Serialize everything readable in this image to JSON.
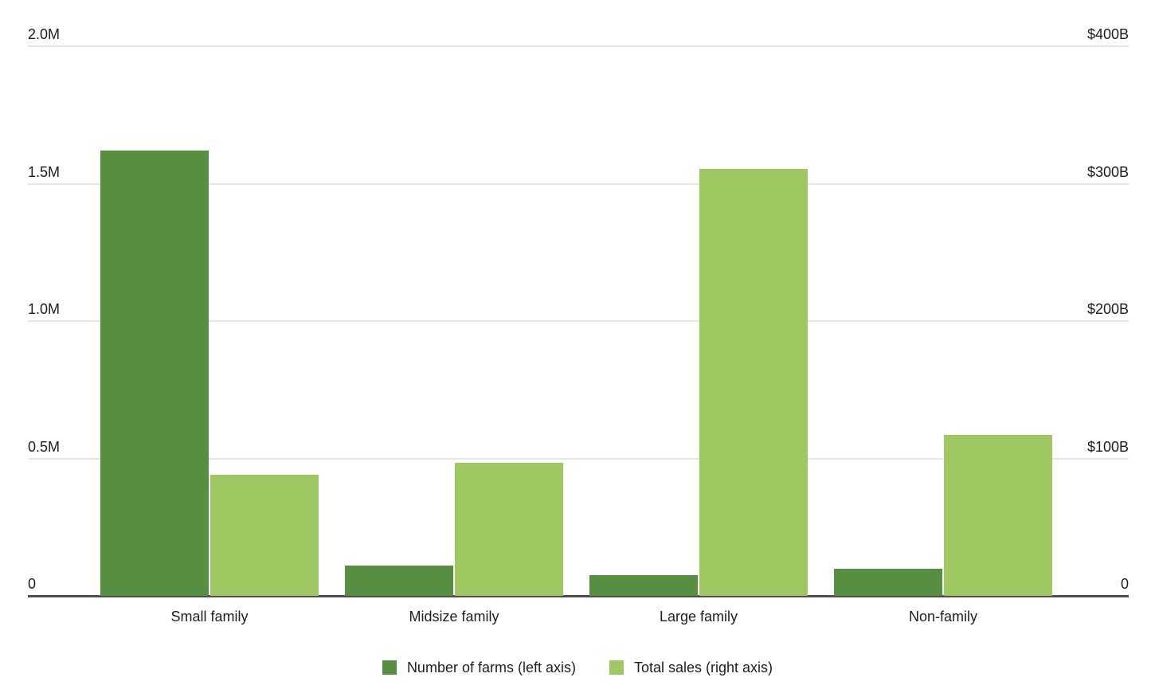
{
  "chart_data": {
    "type": "bar",
    "title": "",
    "categories": [
      "Small family",
      "Midsize family",
      "Large family",
      "Non-family"
    ],
    "series": [
      {
        "name": "Number of farms (left axis)",
        "axis": "left",
        "color": "#568f41",
        "values": [
          1.62,
          0.11,
          0.075,
          0.099
        ]
      },
      {
        "name": "Total sales (right axis)",
        "axis": "right",
        "color": "#a0c862",
        "values": [
          88,
          97,
          311,
          117
        ]
      }
    ],
    "left_axis": {
      "min": 0,
      "max": 2.0,
      "ticks": [
        "0",
        "0.5M",
        "1.0M",
        "1.5M",
        "2.0M"
      ]
    },
    "right_axis": {
      "min": 0,
      "max": 400,
      "ticks": [
        "0",
        "$100B",
        "$200B",
        "$300B",
        "$400B"
      ]
    },
    "grid": true,
    "legend_position": "bottom"
  },
  "colors": {
    "grid": "#e6e6e6",
    "axis_line": "#4f4f4f",
    "text": "#1e1e1e",
    "background": "#ffffff",
    "series_dark_green": "#568f41",
    "series_light_green": "#a0c862"
  }
}
